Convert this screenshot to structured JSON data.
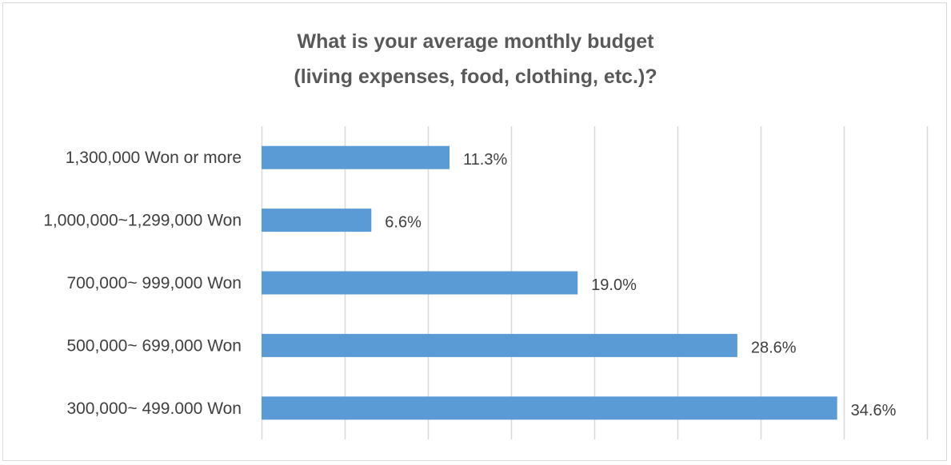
{
  "chart_data": {
    "type": "bar",
    "orientation": "horizontal",
    "title_lines": [
      "What is your average monthly budget",
      "(living expenses, food, clothing, etc.)?"
    ],
    "categories": [
      "1,300,000 Won or more",
      "1,000,000~1,299,000 Won",
      "700,000~ 999,000 Won",
      "500,000~ 699,000 Won",
      "300,000~ 499.000 Won"
    ],
    "values": [
      11.3,
      6.6,
      19.0,
      28.6,
      34.6
    ],
    "value_labels": [
      "11.3%",
      "6.6%",
      "19.0%",
      "28.6%",
      "34.6%"
    ],
    "xlim": [
      0,
      40
    ],
    "gridlines": true,
    "bar_color": "#5b9bd5",
    "grid_color": "#d9d9d9"
  }
}
